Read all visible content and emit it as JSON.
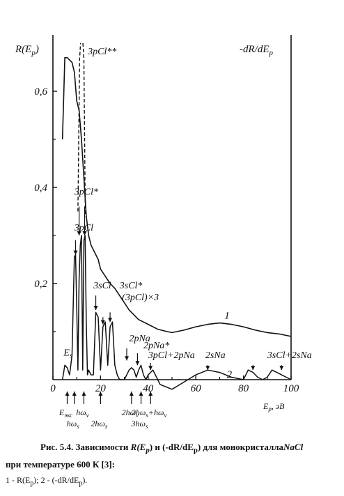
{
  "chart_data": {
    "type": "line",
    "ylabel_left": "R(E",
    "ylabel_left_sub": "p",
    "ylabel_right": "-dR/dE",
    "ylabel_right_sub": "p",
    "xlabel": "E",
    "xlabel_sub": "p",
    "xlabel_unit": ", эВ",
    "xlim": [
      0,
      100
    ],
    "ylim": [
      0,
      0.7
    ],
    "xticks": [
      "0",
      "20",
      "40",
      "60",
      "80",
      "100"
    ],
    "yticks": [
      "0,2",
      "0,4",
      "0,6"
    ],
    "series": [
      {
        "name": "1",
        "x": [
          4,
          5,
          6,
          8,
          9,
          10,
          11,
          12,
          13,
          14,
          15,
          16,
          17,
          18,
          19,
          20,
          22,
          24,
          26,
          28,
          30,
          32,
          34,
          36,
          40,
          44,
          48,
          50,
          55,
          60,
          65,
          70,
          75,
          80,
          85,
          90,
          95,
          100
        ],
        "y": [
          0.5,
          0.67,
          0.67,
          0.66,
          0.64,
          0.58,
          0.56,
          0.5,
          0.42,
          0.34,
          0.3,
          0.28,
          0.27,
          0.26,
          0.25,
          0.23,
          0.215,
          0.2,
          0.19,
          0.175,
          0.16,
          0.145,
          0.135,
          0.125,
          0.115,
          0.105,
          0.1,
          0.098,
          0.103,
          0.11,
          0.115,
          0.118,
          0.115,
          0.11,
          0.103,
          0.098,
          0.095,
          0.09
        ]
      },
      {
        "name": "2",
        "x": [
          4,
          5,
          6,
          7,
          8,
          9,
          9.5,
          10,
          10.5,
          11,
          11.5,
          12,
          12.5,
          13,
          13.5,
          14,
          14.5,
          15,
          16,
          17,
          18,
          19,
          20,
          21,
          22,
          23,
          24,
          25,
          26,
          27,
          28,
          30,
          32,
          33,
          34,
          35,
          36,
          37,
          38,
          39,
          40,
          41,
          42,
          43,
          44,
          45,
          50,
          55,
          60,
          65,
          70,
          75,
          80,
          82,
          84,
          86,
          88,
          90,
          92,
          94,
          96,
          98,
          100
        ],
        "y": [
          0,
          0.03,
          0.025,
          0.01,
          0.05,
          0.255,
          0.26,
          0.15,
          0.02,
          0.21,
          0.28,
          0.3,
          0.02,
          0.29,
          0.3,
          0.12,
          0.01,
          0.02,
          0.01,
          0.01,
          0.14,
          0.13,
          0.02,
          0.11,
          0.12,
          0.03,
          0.11,
          0.12,
          0.03,
          0.01,
          0.0,
          0.0,
          0.02,
          0.025,
          0.02,
          0.005,
          0.02,
          0.03,
          0.01,
          0.0,
          0.01,
          0.015,
          0.02,
          0.01,
          0.0,
          -0.01,
          -0.02,
          -0.005,
          0.01,
          0.02,
          0.015,
          0.005,
          0.0,
          0.02,
          0.015,
          0.005,
          0.0,
          0.005,
          0.02,
          0.015,
          0.01,
          0.005,
          0.0
        ]
      }
    ],
    "dashed_peak_label": "3pCl**",
    "curve_labels": [
      "1",
      "2"
    ],
    "annotations": [
      {
        "text": "3pCl*",
        "x": 9,
        "y": 0.385
      },
      {
        "text": "3pCl",
        "x": 9,
        "y": 0.31
      },
      {
        "text": "3sCl",
        "x": 17,
        "y": 0.19
      },
      {
        "text": "3sCl*",
        "x": 28,
        "y": 0.19
      },
      {
        "text": "(3pCl)×3",
        "x": 29,
        "y": 0.165
      },
      {
        "text": "2pNa",
        "x": 32,
        "y": 0.08
      },
      {
        "text": "2pNa*",
        "x": 38,
        "y": 0.065
      },
      {
        "text": "3pCl+2pNa",
        "x": 40,
        "y": 0.045
      },
      {
        "text": "2sNa",
        "x": 64,
        "y": 0.045
      },
      {
        "text": "3sCl+2sNa",
        "x": 90,
        "y": 0.045
      },
      {
        "text": "E",
        "x": 4.5,
        "y": 0.05
      }
    ],
    "bottom_markers": [
      {
        "text": "E",
        "sub": "экс",
        "x": 6,
        "row": 1
      },
      {
        "text": "hω",
        "sub": "s",
        "x": 9,
        "row": 2
      },
      {
        "text": "hω",
        "sub": "v",
        "x": 13,
        "row": 1
      },
      {
        "text": "2hω",
        "sub": "s",
        "x": 20,
        "row": 2
      },
      {
        "text": "2hω",
        "sub": "v",
        "x": 33,
        "row": 1
      },
      {
        "text": "3hω",
        "sub": "s",
        "x": 37,
        "row": 2
      },
      {
        "text": "2hω",
        "sub": "s",
        "extra": "+hω",
        "extra_sub": "v",
        "x": 41,
        "row": 1
      }
    ]
  },
  "caption": {
    "line1_prefix": "Рис. 5.4. Зависимости ",
    "line1_r": "R(E",
    "line1_r_sub": "p",
    "line1_mid": ") и (-dR/dE",
    "line1_mid_sub": "p",
    "line1_suffix": ") для монокристалла",
    "line1_material": "NaCl",
    "line2": "при температуре 600 К [3]:",
    "line3_a": "1 - R(E",
    "line3_a_sub": "p",
    "line3_b": "); 2 - (-dR/dE",
    "line3_b_sub": "p",
    "line3_c": ")."
  }
}
